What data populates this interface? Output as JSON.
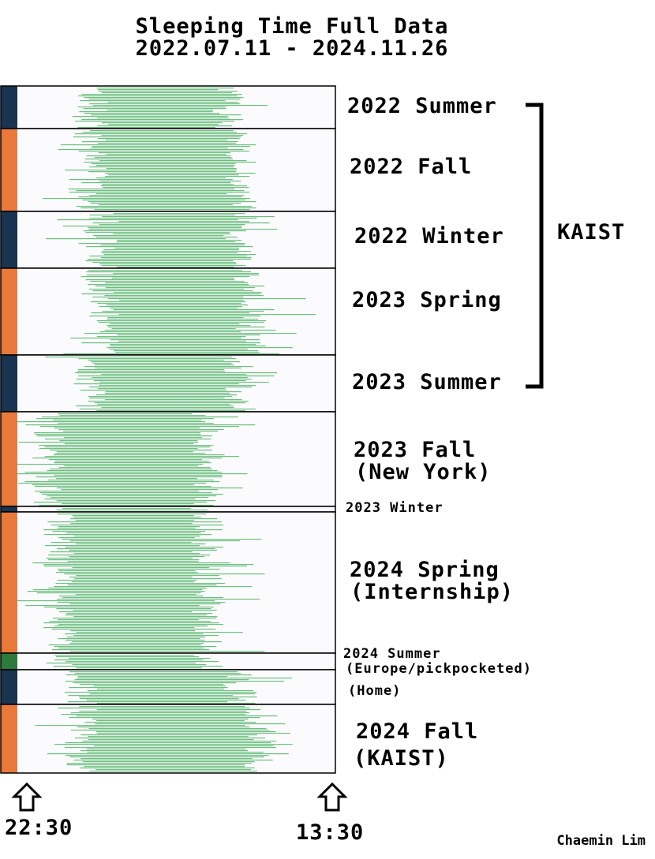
{
  "title_line1": "Sleeping Time Full Data",
  "title_line2": "2022.07.11 - 2024.11.26",
  "axis": {
    "start_label": "22:30",
    "end_label": "13:30",
    "start_hour": 22.5,
    "end_hour": 37.5
  },
  "group_label": "KAIST",
  "credit": "Chaemin Lim",
  "colors": {
    "sleep": "#6dbf7f",
    "navy": "#1a3350",
    "orange": "#e8793a",
    "green": "#2d7a3c",
    "panel_bg": "#fbfbfd"
  },
  "chart_data": {
    "type": "bar",
    "orientation": "horizontal-range",
    "x_unit": "clock time (22:30 to 13:30 next day)",
    "segments": [
      {
        "label": "2022 Summer",
        "indicator": "navy",
        "typical_sleep": "02:00",
        "typical_wake": "08:30"
      },
      {
        "label": "2022 Fall",
        "indicator": "orange",
        "typical_sleep": "02:00",
        "typical_wake": "09:00"
      },
      {
        "label": "2022 Winter",
        "indicator": "navy",
        "typical_sleep": "02:30",
        "typical_wake": "09:00"
      },
      {
        "label": "2023 Spring",
        "indicator": "orange",
        "typical_sleep": "02:30",
        "typical_wake": "09:30"
      },
      {
        "label": "2023 Summer",
        "indicator": "navy",
        "typical_sleep": "02:00",
        "typical_wake": "09:00"
      },
      {
        "label": "2023 Fall (New York)",
        "indicator": "orange",
        "typical_sleep": "00:00",
        "typical_wake": "07:30"
      },
      {
        "label": "2023 Winter",
        "indicator": "navy",
        "typical_sleep": "00:30",
        "typical_wake": "07:00"
      },
      {
        "label": "2024 Spring (Internship)",
        "indicator": "orange",
        "typical_sleep": "00:30",
        "typical_wake": "07:30"
      },
      {
        "label": "2024 Summer (Europe/pickpocketed)",
        "indicator": "green",
        "typical_sleep": "00:30",
        "typical_wake": "07:30"
      },
      {
        "label": "(Home)",
        "indicator": "navy",
        "typical_sleep": "01:30",
        "typical_wake": "09:00"
      },
      {
        "label": "2024 Fall (KAIST)",
        "indicator": "orange",
        "typical_sleep": "01:30",
        "typical_wake": "10:00"
      }
    ]
  },
  "labels": {
    "s2022_summer": "2022 Summer",
    "s2022_fall": "2022 Fall",
    "s2022_winter": "2022 Winter",
    "s2023_spring": "2023 Spring",
    "s2023_summer": "2023 Summer",
    "s2023_fall_1": "2023 Fall",
    "s2023_fall_2": "(New York)",
    "s2023_winter": "2023 Winter",
    "s2024_spring_1": "2024 Spring",
    "s2024_spring_2": "(Internship)",
    "s2024_summer_1": "2024 Summer",
    "s2024_summer_2": "(Europe/pickpocketed)",
    "home": "(Home)",
    "s2024_fall_1": "2024 Fall",
    "s2024_fall_2": "(KAIST)"
  }
}
